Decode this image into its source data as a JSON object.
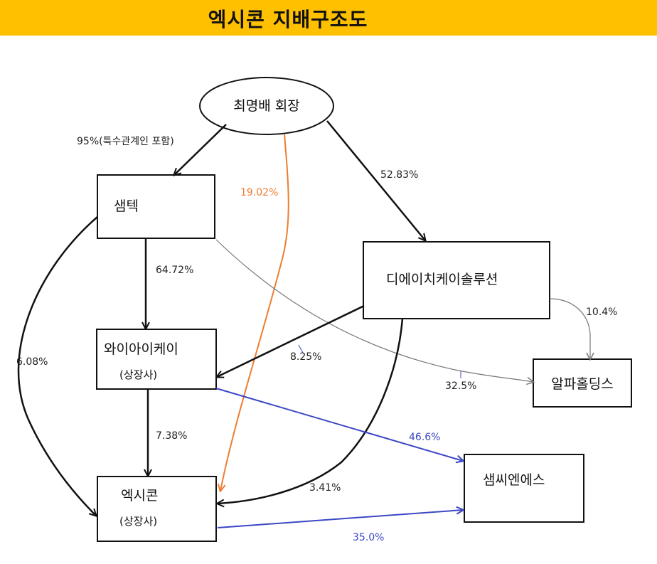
{
  "title": "엑시콘 지배구조도",
  "nodes": {
    "chairman": "최명배 회장",
    "samtek": "샘텍",
    "yiik": "와이아이케이",
    "yiik_sub": "(상장사)",
    "dhk": "디에이치케이솔루션",
    "alpha": "알파홀딩스",
    "exicon": "엑시콘",
    "exicon_sub": "(상장사)",
    "samsne": "샘씨엔에스"
  },
  "edges": {
    "chairman_samtek": "95%(특수관계인 포함)",
    "chairman_exicon": "19.02%",
    "chairman_dhk": "52.83%",
    "samtek_yiik": "64.72%",
    "samtek_exicon": "6.08%",
    "samtek_alpha": "32.5%",
    "dhk_yiik": "8.25%",
    "dhk_alpha": "10.4%",
    "dhk_exicon": "3.41%",
    "yiik_exicon": "7.38%",
    "yiik_samsne": "46.6%",
    "exicon_samsne": "35.0%"
  },
  "colors": {
    "title_bg": "#ffc000",
    "orange": "#ed7d31",
    "blue": "#3b47c4",
    "black": "#111111",
    "gray": "#777777"
  }
}
